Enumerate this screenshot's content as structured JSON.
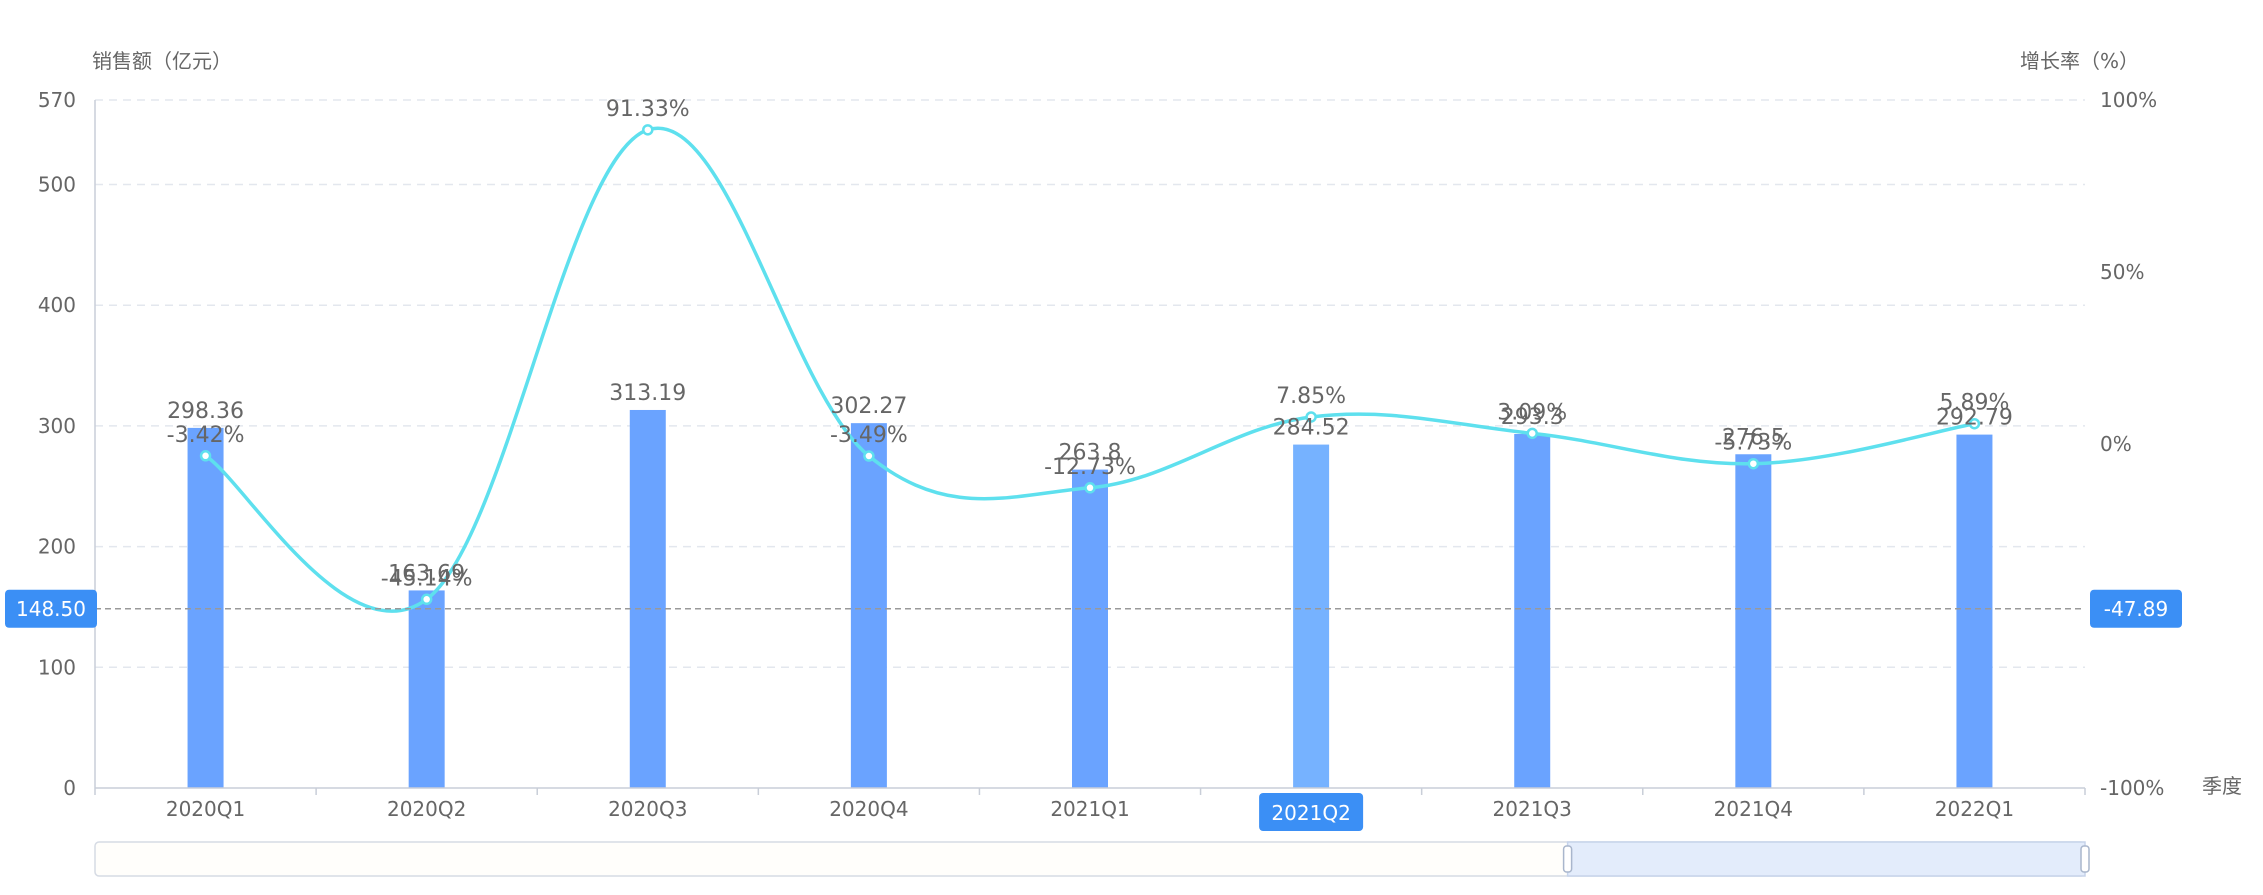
{
  "chart_data": {
    "type": "bar",
    "categories": [
      "2020Q1",
      "2020Q2",
      "2020Q3",
      "2020Q4",
      "2021Q1",
      "2021Q2",
      "2021Q3",
      "2021Q4",
      "2022Q1"
    ],
    "series": [
      {
        "type": "bar",
        "axis": "left",
        "values": [
          298.36,
          163.69,
          313.19,
          302.27,
          263.8,
          284.52,
          293.3,
          276.5,
          292.79
        ],
        "labels": [
          "298.36",
          "163.69",
          "313.19",
          "302.27",
          "263.8",
          "284.52",
          "293.3",
          "276.5",
          "292.79"
        ]
      },
      {
        "type": "line",
        "axis": "right",
        "smooth": true,
        "values": [
          -3.42,
          -45.14,
          91.33,
          -3.49,
          -12.73,
          7.85,
          3.09,
          -5.73,
          5.89
        ],
        "labels": [
          "-3.42%",
          "-45.14%",
          "91.33%",
          "-3.49%",
          "-12.73%",
          "7.85%",
          "3.09%",
          "-5.73%",
          "5.89%"
        ]
      }
    ],
    "y_left": {
      "label": "销售额（亿元）",
      "min": 0,
      "max": 570,
      "ticks": [
        0,
        100,
        200,
        300,
        400,
        500,
        570
      ],
      "tick_labels": [
        "0",
        "100",
        "200",
        "300",
        "400",
        "500",
        "570"
      ]
    },
    "y_right": {
      "label": "增长率（%）",
      "min": -100,
      "max": 100,
      "ticks": [
        -100,
        0,
        50,
        100
      ],
      "tick_labels": [
        "-100%",
        "0%",
        "50%",
        "100%"
      ]
    },
    "x_axis": {
      "label": "季度"
    },
    "highlighted_category": "2021Q2",
    "crosshair": {
      "left_value": 148.5,
      "left_label": "148.50",
      "right_value": -47.89,
      "right_label": "-47.89"
    },
    "grid": true,
    "colors": {
      "bar": "#6aa3ff",
      "bar_highlight": "#76b2ff",
      "line": "#5ee0ee",
      "pointer_bg": "#3b8ff5",
      "grid": "#e3e7ee",
      "axis_text": "#666666"
    }
  },
  "datazoom": {
    "range_start": 0.74,
    "range_end": 1.0
  }
}
